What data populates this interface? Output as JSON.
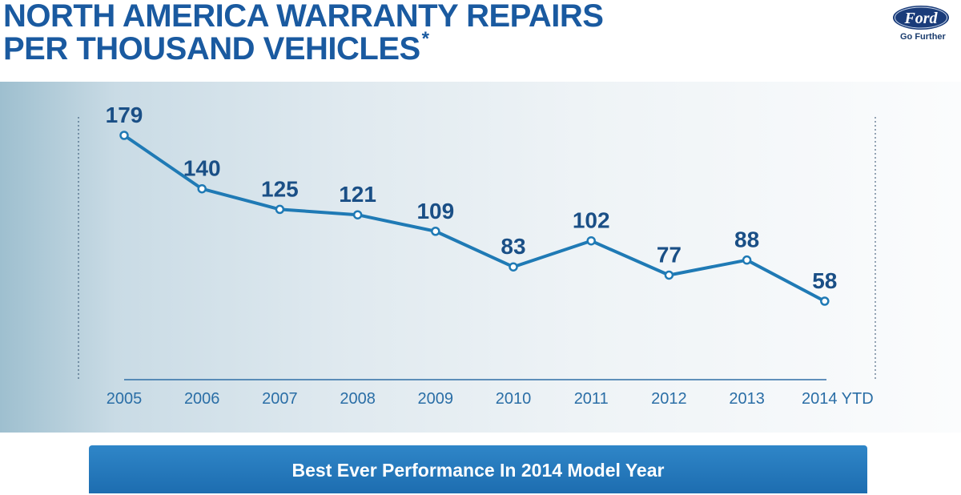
{
  "header": {
    "title_line1": "NORTH AMERICA WARRANTY REPAIRS",
    "title_line2": "PER THOUSAND VEHICLES",
    "title_footnote_mark": "*"
  },
  "brand": {
    "logo_text": "Ford",
    "tagline": "Go Further"
  },
  "colors": {
    "title": "#1a5aa0",
    "line": "#1f7ab5",
    "label": "#1a4f86",
    "banner": "#2478bc"
  },
  "chart_data": {
    "type": "line",
    "title": "NORTH AMERICA WARRANTY REPAIRS PER THOUSAND VEHICLES*",
    "xlabel": "",
    "ylabel": "",
    "categories": [
      "2005",
      "2006",
      "2007",
      "2008",
      "2009",
      "2010",
      "2011",
      "2012",
      "2013",
      "2014 YTD"
    ],
    "series": [
      {
        "name": "Warranty repairs per thousand vehicles",
        "values": [
          179,
          140,
          125,
          121,
          109,
          83,
          102,
          77,
          88,
          58
        ]
      }
    ],
    "data_labels": [
      "179",
      "140",
      "125",
      "121",
      "109",
      "83",
      "102",
      "77",
      "88",
      "58"
    ],
    "ylim": [
      0,
      200
    ],
    "grid": false,
    "legend": "none"
  },
  "banner": {
    "text": "Best Ever Performance In 2014 Model Year"
  }
}
